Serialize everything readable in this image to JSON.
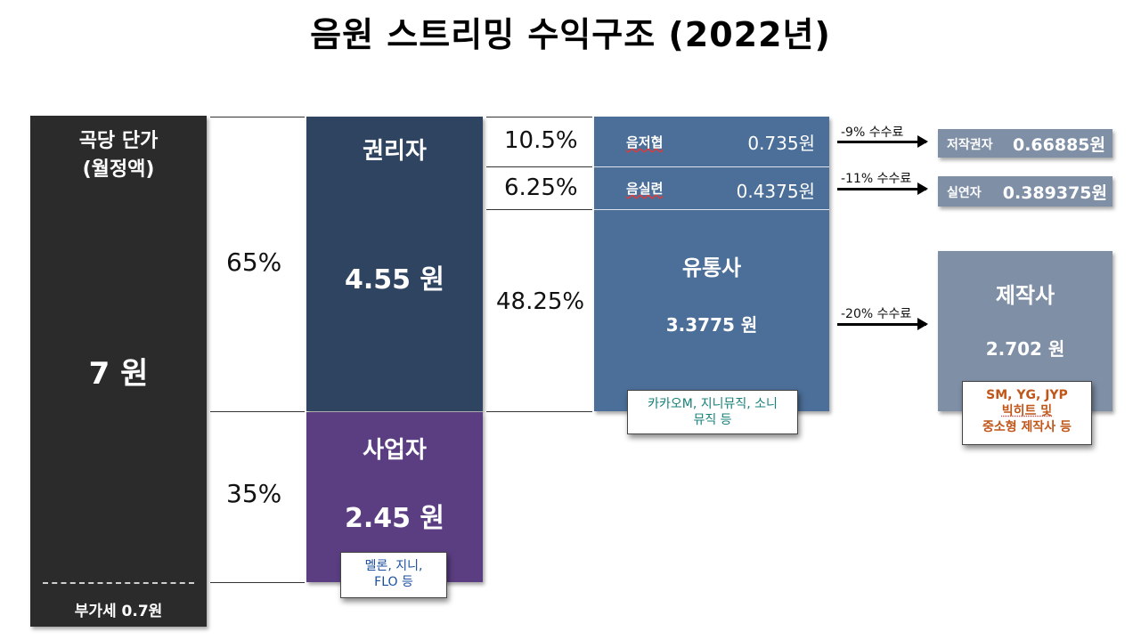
{
  "title": "음원 스트리밍 수익구조 (2022년)",
  "colors": {
    "total": "#2b2b2b",
    "rights": "#2e4460",
    "business": "#5b3e82",
    "distributor": "#4b6f98",
    "producer": "#7f8fa6",
    "note_blue": "#1a4fa0",
    "note_teal": "#17807a",
    "note_orange": "#c0561a"
  },
  "total": {
    "label_line1": "곡당 단가",
    "label_line2": "(월정액)",
    "value": "7 원",
    "vat": "부가세 0.7원"
  },
  "split": {
    "rights_pct": "65%",
    "business_pct": "35%"
  },
  "rights": {
    "label": "권리자",
    "value": "4.55 원"
  },
  "business": {
    "label": "사업자",
    "value": "2.45 원",
    "note_line1": "멜론, 지니,",
    "note_line2": "FLO 등"
  },
  "rights_split": {
    "composer_pct": "10.5%",
    "performer_pct": "6.25%",
    "distributor_pct": "48.25%"
  },
  "distributor_box": {
    "composer_label": "음저협",
    "composer_value": "0.735원",
    "performer_label": "음실련",
    "performer_value": "0.4375원",
    "label": "유통사",
    "value": "3.3775 원",
    "note_line1": "카카오M, 지니뮤직, 소니",
    "note_line2": "뮤직 등"
  },
  "fees": {
    "composer_fee": "-9% 수수료",
    "performer_fee": "-11% 수수료",
    "producer_fee": "-20% 수수료"
  },
  "final": {
    "copyright_label": "저작권자",
    "copyright_value": "0.66885원",
    "performer_label": "실연자",
    "performer_value": "0.389375원",
    "producer_label": "제작사",
    "producer_value": "2.702 원",
    "producer_note_line1": "SM, YG, JYP",
    "producer_note_line2": "빅히트 및",
    "producer_note_line3": "중소형 제작사 등"
  }
}
